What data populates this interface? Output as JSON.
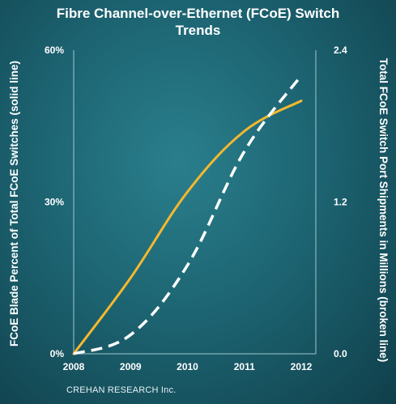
{
  "chart_data": {
    "type": "line",
    "title_lines": [
      "Fibre Channel-over-Ethernet (FCoE) Switch",
      "Trends"
    ],
    "x": [
      "2008",
      "2009",
      "2010",
      "2011",
      "2012"
    ],
    "y_left_label": "FCoE Blade Percent of Total FCoE Switches (solid line)",
    "y_right_label": "Total FCoE Switch Port Shipments in Millions (broken line)",
    "y_left_ticks": [
      "0%",
      "30%",
      "60%"
    ],
    "y_right_ticks": [
      "0.0",
      "1.2",
      "2.4"
    ],
    "ylim_left": [
      0,
      60
    ],
    "ylim_right": [
      0,
      2.4
    ],
    "grid": false,
    "series": [
      {
        "name": "FCoE Blade Percent of Total FCoE Switches",
        "style": "solid",
        "axis": "left",
        "color": "#f5b82e",
        "values": [
          0,
          15,
          32,
          44,
          50
        ]
      },
      {
        "name": "Total FCoE Switch Port Shipments in Millions",
        "style": "dashed",
        "axis": "right",
        "color": "#ffffff",
        "values": [
          0.0,
          0.15,
          0.7,
          1.6,
          2.2
        ]
      }
    ],
    "source": "CREHAN RESEARCH Inc."
  }
}
